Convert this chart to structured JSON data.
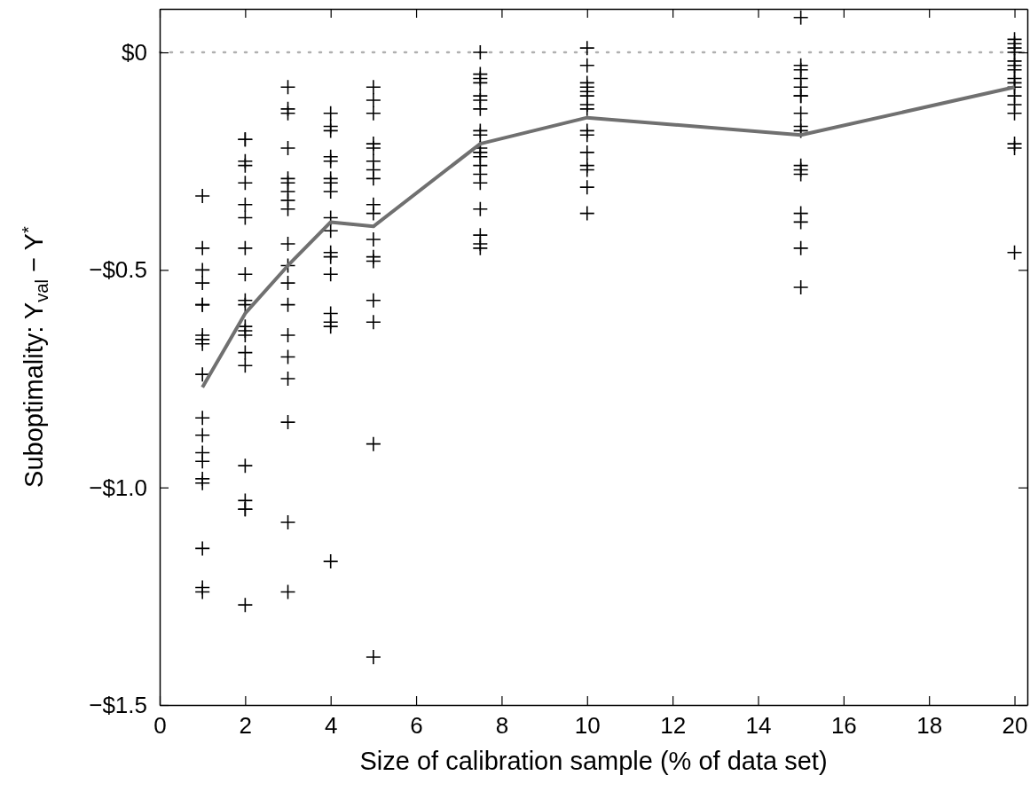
{
  "chart_data": {
    "type": "scatter",
    "xlabel": "Size of calibration sample (% of data set)",
    "ylabel": "Suboptimality: Y$_{val}$ − Y$^{*}$",
    "xlim": [
      0,
      20.3
    ],
    "xticks": [
      0,
      2,
      4,
      6,
      8,
      10,
      12,
      14,
      16,
      18,
      20
    ],
    "ylim": [
      -1.5,
      0.1
    ],
    "yticks": [
      {
        "value": -1.5,
        "label": "−$1.5"
      },
      {
        "value": -1.0,
        "label": "−$1.0"
      },
      {
        "value": -0.5,
        "label": "−$0.5"
      },
      {
        "value": 0,
        "label": "$0"
      }
    ],
    "grid": false,
    "ref_lines": [
      {
        "axis": "y",
        "value": 0,
        "color": "#b0b0b0",
        "line_style": "dotted"
      }
    ],
    "series": [
      {
        "color": "#000000",
        "marker": "cross",
        "x": [
          1,
          1,
          1,
          1,
          1,
          1,
          1,
          1,
          1,
          1,
          1,
          1,
          1,
          1,
          1,
          1,
          1,
          1,
          1,
          2,
          2,
          2,
          2,
          2,
          2,
          2,
          2,
          2,
          2,
          2,
          2,
          2,
          2,
          2,
          2,
          2,
          2,
          2,
          2,
          2,
          3,
          3,
          3,
          3,
          3,
          3,
          3,
          3,
          3,
          3,
          3,
          3,
          3,
          3,
          3,
          3,
          3,
          3,
          3,
          4,
          4,
          4,
          4,
          4,
          4,
          4,
          4,
          4,
          4,
          4,
          4,
          4,
          4,
          4,
          4,
          4,
          5,
          5,
          5,
          5,
          5,
          5,
          5,
          5,
          5,
          5,
          5,
          5,
          5,
          5,
          5,
          5,
          5,
          7.5,
          7.5,
          7.5,
          7.5,
          7.5,
          7.5,
          7.5,
          7.5,
          7.5,
          7.5,
          7.5,
          7.5,
          7.5,
          7.5,
          7.5,
          7.5,
          7.5,
          7.5,
          7.5,
          10,
          10,
          10,
          10,
          10,
          10,
          10,
          10,
          10,
          10,
          10,
          10,
          10,
          10,
          10,
          15,
          15,
          15,
          15,
          15,
          15,
          15,
          15,
          15,
          15,
          15,
          15,
          15,
          15,
          15,
          15,
          15,
          20,
          20,
          20,
          20,
          20,
          20,
          20,
          20,
          20,
          20,
          20,
          20,
          20,
          20,
          20,
          20
        ],
        "values": [
          -0.33,
          -0.45,
          -0.5,
          -0.53,
          -0.58,
          -0.58,
          -0.65,
          -0.66,
          -0.67,
          -0.74,
          -0.84,
          -0.88,
          -0.92,
          -0.94,
          -0.98,
          -0.99,
          -1.14,
          -1.23,
          -1.24,
          -0.2,
          -0.2,
          -0.25,
          -0.26,
          -0.3,
          -0.35,
          -0.38,
          -0.45,
          -0.51,
          -0.57,
          -0.58,
          -0.63,
          -0.64,
          -0.65,
          -0.69,
          -0.72,
          -0.95,
          -1.03,
          -1.05,
          -1.05,
          -1.27,
          -0.08,
          -0.13,
          -0.14,
          -0.22,
          -0.29,
          -0.3,
          -0.32,
          -0.34,
          -0.36,
          -0.44,
          -0.49,
          -0.53,
          -0.58,
          -0.65,
          -0.7,
          -0.75,
          -0.85,
          -1.08,
          -1.24,
          -0.14,
          -0.17,
          -0.18,
          -0.24,
          -0.25,
          -0.29,
          -0.3,
          -0.32,
          -0.38,
          -0.41,
          -0.46,
          -0.47,
          -0.51,
          -0.6,
          -0.62,
          -0.63,
          -1.17,
          -0.08,
          -0.11,
          -0.14,
          -0.21,
          -0.22,
          -0.25,
          -0.27,
          -0.29,
          -0.35,
          -0.37,
          -0.43,
          -0.47,
          -0.48,
          -0.57,
          -0.62,
          -0.9,
          -1.39,
          0,
          -0.05,
          -0.06,
          -0.07,
          -0.1,
          -0.11,
          -0.13,
          -0.18,
          -0.19,
          -0.22,
          -0.23,
          -0.24,
          -0.26,
          -0.28,
          -0.3,
          -0.36,
          -0.42,
          -0.44,
          -0.45,
          0.01,
          -0.03,
          -0.07,
          -0.08,
          -0.09,
          -0.1,
          -0.12,
          -0.13,
          -0.18,
          -0.19,
          -0.23,
          -0.26,
          -0.27,
          -0.31,
          -0.37,
          0.08,
          -0.03,
          -0.04,
          -0.06,
          -0.08,
          -0.1,
          -0.1,
          -0.14,
          -0.17,
          -0.18,
          -0.26,
          -0.27,
          -0.28,
          -0.37,
          -0.39,
          -0.45,
          -0.54,
          0.03,
          0.02,
          0.01,
          0,
          -0.02,
          -0.03,
          -0.04,
          -0.06,
          -0.07,
          -0.08,
          -0.1,
          -0.12,
          -0.14,
          -0.21,
          -0.22,
          -0.46
        ]
      },
      {
        "type": "line",
        "color": "#707070",
        "marker": "none",
        "line_style": "solid",
        "x": [
          1,
          2,
          3,
          4,
          5,
          7.5,
          10,
          15,
          20
        ],
        "values": [
          -0.77,
          -0.6,
          -0.49,
          -0.39,
          -0.4,
          -0.21,
          -0.15,
          -0.19,
          -0.08
        ]
      }
    ]
  }
}
